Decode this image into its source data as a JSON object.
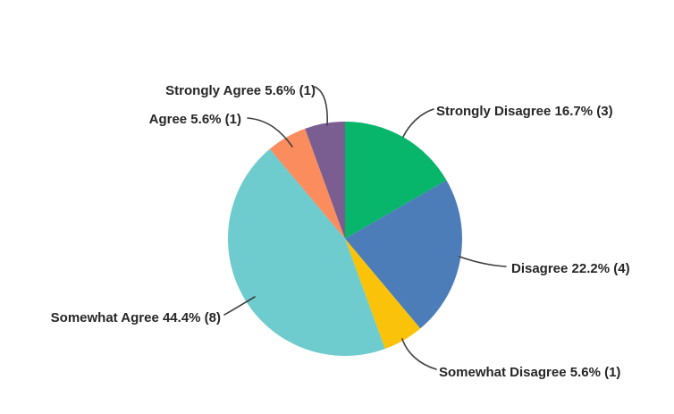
{
  "chart_data": {
    "type": "pie",
    "title": "",
    "categories": [
      "Strongly Disagree",
      "Disagree",
      "Somewhat Disagree",
      "Somewhat Agree",
      "Agree",
      "Strongly Agree"
    ],
    "values": [
      3,
      4,
      1,
      8,
      1,
      1
    ],
    "percentages": [
      16.7,
      22.2,
      5.6,
      44.4,
      5.6,
      5.6
    ],
    "slice_labels": [
      "Strongly Disagree 16.7% (3)",
      "Disagree 22.2% (4)",
      "Somewhat Disagree 5.6% (1)",
      "Somewhat Agree 44.4% (8)",
      "Agree 5.6% (1)",
      "Strongly Agree 5.6% (1)"
    ],
    "slice_ids": [
      "strongly-disagree",
      "disagree",
      "somewhat-disagree",
      "somewhat-agree",
      "agree",
      "strongly-agree"
    ],
    "colors": [
      "#07b56b",
      "#4d7db9",
      "#fac208",
      "#6ecbce",
      "#fa8c5e",
      "#7a5e92"
    ],
    "start_angle_deg": 0,
    "direction": "clockwise",
    "legend_position": "callout-labels",
    "label_color": "#262626",
    "leader_line_color": "#3f3f3f"
  }
}
